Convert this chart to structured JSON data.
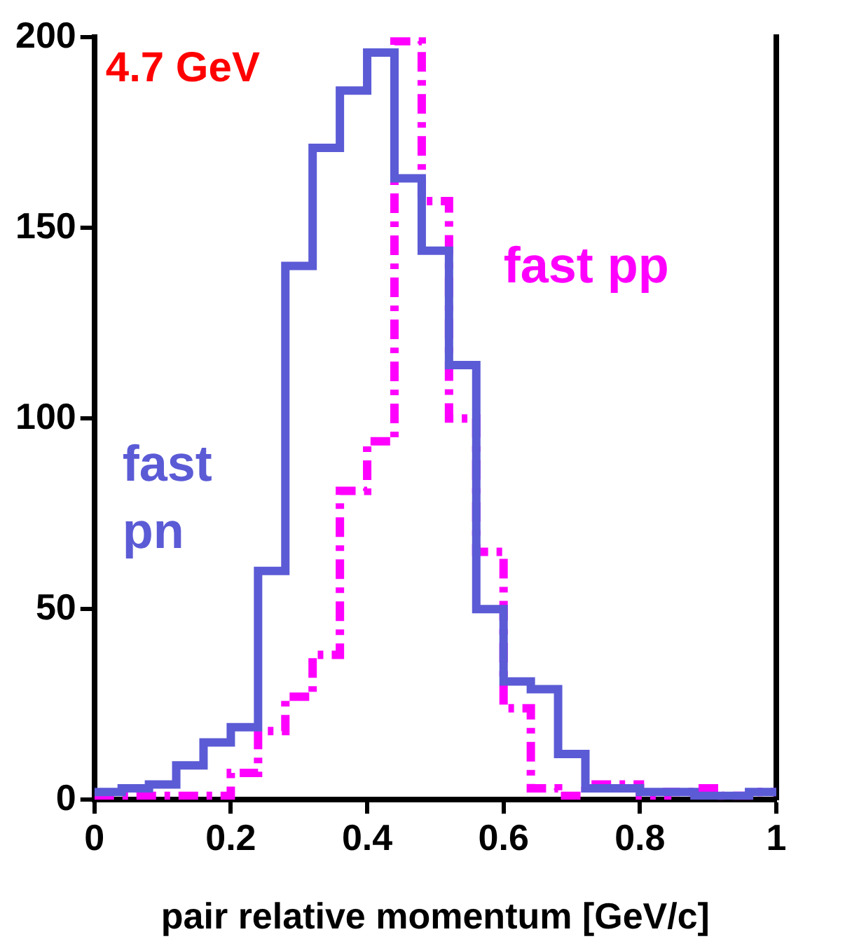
{
  "chart_data": {
    "type": "histogram",
    "xlabel": "pair relative momentum [GeV/c]",
    "annotations": [
      "4.7 GeV"
    ],
    "bins": [
      0,
      0.04,
      0.08,
      0.12,
      0.16,
      0.2,
      0.24,
      0.28,
      0.32,
      0.36,
      0.4,
      0.44,
      0.48,
      0.52,
      0.56,
      0.6,
      0.64,
      0.68,
      0.72,
      0.76,
      0.8,
      0.84,
      0.88,
      0.92,
      0.96,
      1
    ],
    "series": [
      {
        "name": "fast pn",
        "color": "#5b5bd6",
        "line_style": "solid",
        "values": [
          2,
          3,
          4,
          9,
          15,
          19,
          60,
          140,
          171,
          186,
          196,
          163,
          144,
          114,
          50,
          31,
          29,
          12,
          3,
          3,
          2,
          2,
          1,
          1,
          2
        ]
      },
      {
        "name": "fast pp",
        "color": "#ff00ff",
        "line_style": "dashed",
        "values": [
          1,
          1,
          1,
          1,
          1,
          7,
          18,
          27,
          38,
          81,
          94,
          199,
          157,
          100,
          65,
          24,
          3,
          1,
          4,
          4,
          1,
          2,
          3,
          1,
          2
        ]
      }
    ],
    "xlim": [
      0,
      1
    ],
    "xticks": [
      0,
      0.2,
      0.4,
      0.6,
      0.8,
      1
    ],
    "ylim": [
      0,
      200
    ],
    "yticks": [
      0,
      50,
      100,
      150,
      200
    ],
    "grid": false,
    "legend": false
  }
}
